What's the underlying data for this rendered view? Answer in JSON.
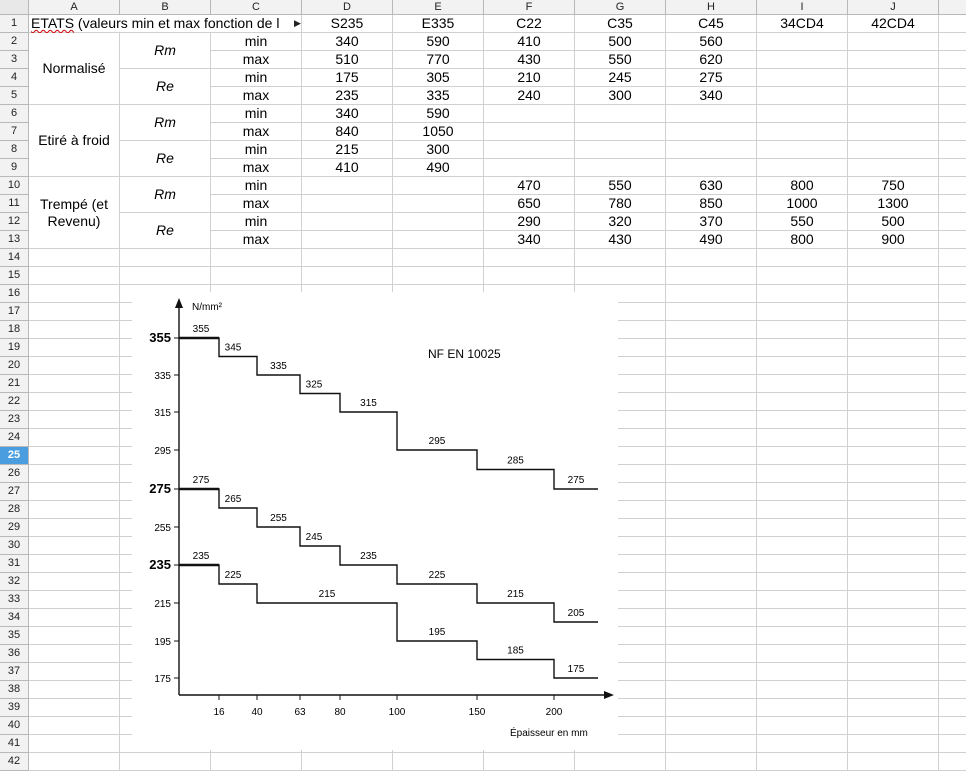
{
  "columns": [
    "A",
    "B",
    "C",
    "D",
    "E",
    "F",
    "G",
    "H",
    "I",
    "J"
  ],
  "rows": 42,
  "selected_row": 25,
  "title_row": {
    "title_word": "ETATS",
    "title_rest": " (valeurs min et max fonction de l",
    "steels": [
      "S235",
      "E335",
      "C22",
      "C35",
      "C45",
      "34CD4",
      "42CD4"
    ]
  },
  "groups": [
    {
      "state": "Normalisé",
      "props": [
        "Rm",
        "Re"
      ]
    },
    {
      "state": "Etiré à froid",
      "props": [
        "Rm",
        "Re"
      ]
    },
    {
      "state": "Trempé (et Revenu)",
      "props": [
        "Rm",
        "Re"
      ]
    }
  ],
  "labels_minmax": [
    "min",
    "max",
    "min",
    "max",
    "min",
    "max",
    "min",
    "max",
    "min",
    "max",
    "min",
    "max"
  ],
  "table_values": [
    [
      "340",
      "590",
      "410",
      "500",
      "560",
      "",
      ""
    ],
    [
      "510",
      "770",
      "430",
      "550",
      "620",
      "",
      ""
    ],
    [
      "175",
      "305",
      "210",
      "245",
      "275",
      "",
      ""
    ],
    [
      "235",
      "335",
      "240",
      "300",
      "340",
      "",
      ""
    ],
    [
      "340",
      "590",
      "",
      "",
      "",
      "",
      ""
    ],
    [
      "840",
      "1050",
      "",
      "",
      "",
      "",
      ""
    ],
    [
      "215",
      "300",
      "",
      "",
      "",
      "",
      ""
    ],
    [
      "410",
      "490",
      "",
      "",
      "",
      "",
      ""
    ],
    [
      "",
      "",
      "470",
      "550",
      "630",
      "800",
      "750"
    ],
    [
      "",
      "",
      "650",
      "780",
      "850",
      "1000",
      "1300"
    ],
    [
      "",
      "",
      "290",
      "320",
      "370",
      "550",
      "500"
    ],
    [
      "",
      "",
      "340",
      "430",
      "490",
      "800",
      "900"
    ]
  ],
  "chart_data": {
    "type": "line",
    "title": "NF EN 10025",
    "ylabel": "N/mm²",
    "xlabel": "Épaisseur en mm",
    "x_ticks": [
      "16",
      "40",
      "63",
      "80",
      "100",
      "150",
      "200"
    ],
    "y_ticks": [
      "355",
      "335",
      "315",
      "295",
      "275",
      "255",
      "235",
      "215",
      "195",
      "175"
    ],
    "y_bold_ticks": [
      "355",
      "275",
      "235"
    ],
    "series": [
      {
        "labels": [
          "355",
          "345",
          "335",
          "325",
          "315",
          "295",
          "285",
          "275"
        ],
        "values": [
          355,
          345,
          335,
          325,
          315,
          295,
          285,
          275
        ]
      },
      {
        "labels": [
          "275",
          "265",
          "255",
          "245",
          "235",
          "225",
          "215",
          "205"
        ],
        "values": [
          275,
          265,
          255,
          245,
          235,
          225,
          215,
          205
        ]
      },
      {
        "labels": [
          "235",
          "225",
          "215",
          "195",
          "185",
          "175"
        ],
        "values": [
          235,
          225,
          215,
          195,
          185,
          175
        ]
      }
    ]
  }
}
